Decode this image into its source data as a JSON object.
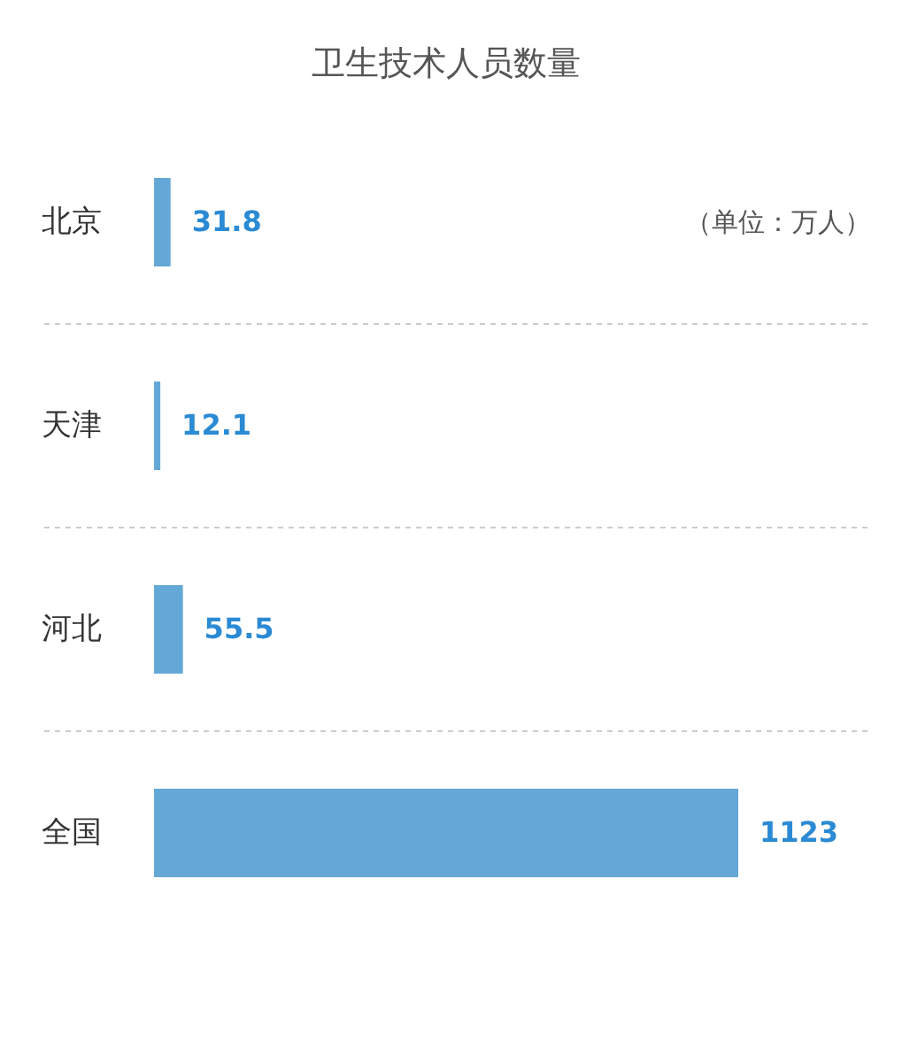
{
  "chart_data": {
    "type": "bar",
    "orientation": "horizontal",
    "title": "卫生技术人员数量",
    "categories": [
      "北京",
      "天津",
      "河北",
      "全国"
    ],
    "values": [
      31.8,
      12.1,
      55.5,
      1123
    ],
    "color": "#64a8d7",
    "data_labels": true,
    "grid": "y",
    "tick_labels": "y",
    "annotations": [
      "（单位：万人）"
    ]
  }
}
